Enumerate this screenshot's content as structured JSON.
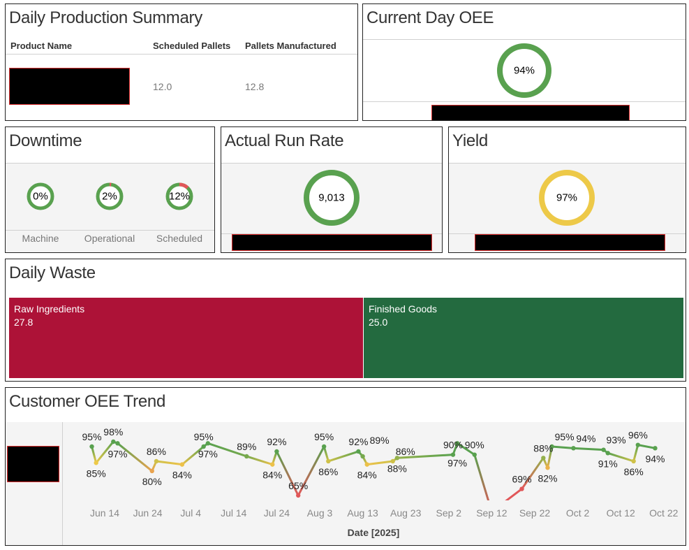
{
  "production_summary": {
    "title": "Daily Production Summary",
    "columns": [
      "Product Name",
      "Scheduled Pallets",
      "Pallets Manufactured"
    ],
    "rows": [
      {
        "product": "",
        "scheduled": "12.0",
        "manufactured": "12.8"
      }
    ]
  },
  "oee": {
    "title": "Current Day OEE",
    "value": "94%",
    "color": "#59a14f"
  },
  "downtime": {
    "title": "Downtime",
    "items": [
      {
        "label": "Machine",
        "value": "0%",
        "fraction": 0
      },
      {
        "label": "Operational",
        "value": "2%",
        "fraction": 0.02
      },
      {
        "label": "Scheduled",
        "value": "12%",
        "fraction": 0.12
      }
    ]
  },
  "run_rate": {
    "title": "Actual Run Rate",
    "value": "9,013",
    "color": "#59a14f"
  },
  "yield": {
    "title": "Yield",
    "value": "97%",
    "color": "#edc948"
  },
  "waste": {
    "title": "Daily Waste",
    "items": [
      {
        "label": "Raw Ingredients",
        "value": "27.8",
        "color": "#ad1237"
      },
      {
        "label": "Finished Goods",
        "value": "25.0",
        "color": "#236a3f"
      }
    ]
  },
  "trend": {
    "title": "Customer OEE Trend",
    "chart_data": {
      "type": "line",
      "xlabel": "Date [2025]",
      "x_ticks": [
        "Jun 14",
        "Jun 24",
        "Jul 4",
        "Jul 14",
        "Jul 24",
        "Aug 3",
        "Aug 13",
        "Aug 23",
        "Sep 2",
        "Sep 12",
        "Sep 22",
        "Oct 2",
        "Oct 12",
        "Oct 22"
      ],
      "y_unit": "%",
      "colors": {
        "high": "#59a14f",
        "mid": "#edc948",
        "low": "#e15759"
      },
      "points": [
        {
          "date": "2025-06-11",
          "value": 95,
          "label": "95%"
        },
        {
          "date": "2025-06-12",
          "value": 85,
          "label": "85%"
        },
        {
          "date": "2025-06-16",
          "value": 98,
          "label": "98%"
        },
        {
          "date": "2025-06-17",
          "value": 97,
          "label": "97%"
        },
        {
          "date": "2025-06-25",
          "value": 80,
          "label": "80%"
        },
        {
          "date": "2025-06-26",
          "value": 86,
          "label": "86%"
        },
        {
          "date": "2025-07-02",
          "value": 84,
          "label": "84%"
        },
        {
          "date": "2025-07-07",
          "value": 95,
          "label": "95%"
        },
        {
          "date": "2025-07-08",
          "value": 97,
          "label": "97%"
        },
        {
          "date": "2025-07-17",
          "value": 89,
          "label": "89%"
        },
        {
          "date": "2025-07-23",
          "value": 84,
          "label": "84%"
        },
        {
          "date": "2025-07-24",
          "value": 92,
          "label": "92%"
        },
        {
          "date": "2025-07-29",
          "value": 65,
          "label": "65%"
        },
        {
          "date": "2025-08-04",
          "value": 95,
          "label": "95%"
        },
        {
          "date": "2025-08-05",
          "value": 86,
          "label": "86%"
        },
        {
          "date": "2025-08-12",
          "value": 92,
          "label": "92%"
        },
        {
          "date": "2025-08-13",
          "value": 89,
          "label": "89%"
        },
        {
          "date": "2025-08-14",
          "value": 84,
          "label": "84%"
        },
        {
          "date": "2025-08-20",
          "value": 86,
          "label": "86%"
        },
        {
          "date": "2025-08-21",
          "value": 88,
          "label": "88%"
        },
        {
          "date": "2025-09-03",
          "value": 90,
          "label": "90%"
        },
        {
          "date": "2025-09-04",
          "value": 97,
          "label": "97%"
        },
        {
          "date": "2025-09-08",
          "value": 90,
          "label": "90%"
        },
        {
          "date": "2025-09-12",
          "value": 55,
          "label": ""
        },
        {
          "date": "2025-09-19",
          "value": 69,
          "label": "69%"
        },
        {
          "date": "2025-09-24",
          "value": 88,
          "label": "88%"
        },
        {
          "date": "2025-09-25",
          "value": 82,
          "label": "82%"
        },
        {
          "date": "2025-09-26",
          "value": 95,
          "label": "95%"
        },
        {
          "date": "2025-10-01",
          "value": 94,
          "label": "94%"
        },
        {
          "date": "2025-10-08",
          "value": 93,
          "label": "93%"
        },
        {
          "date": "2025-10-09",
          "value": 91,
          "label": "91%"
        },
        {
          "date": "2025-10-15",
          "value": 86,
          "label": "86%"
        },
        {
          "date": "2025-10-16",
          "value": 96,
          "label": "96%"
        },
        {
          "date": "2025-10-20",
          "value": 94,
          "label": "94%"
        }
      ]
    }
  }
}
